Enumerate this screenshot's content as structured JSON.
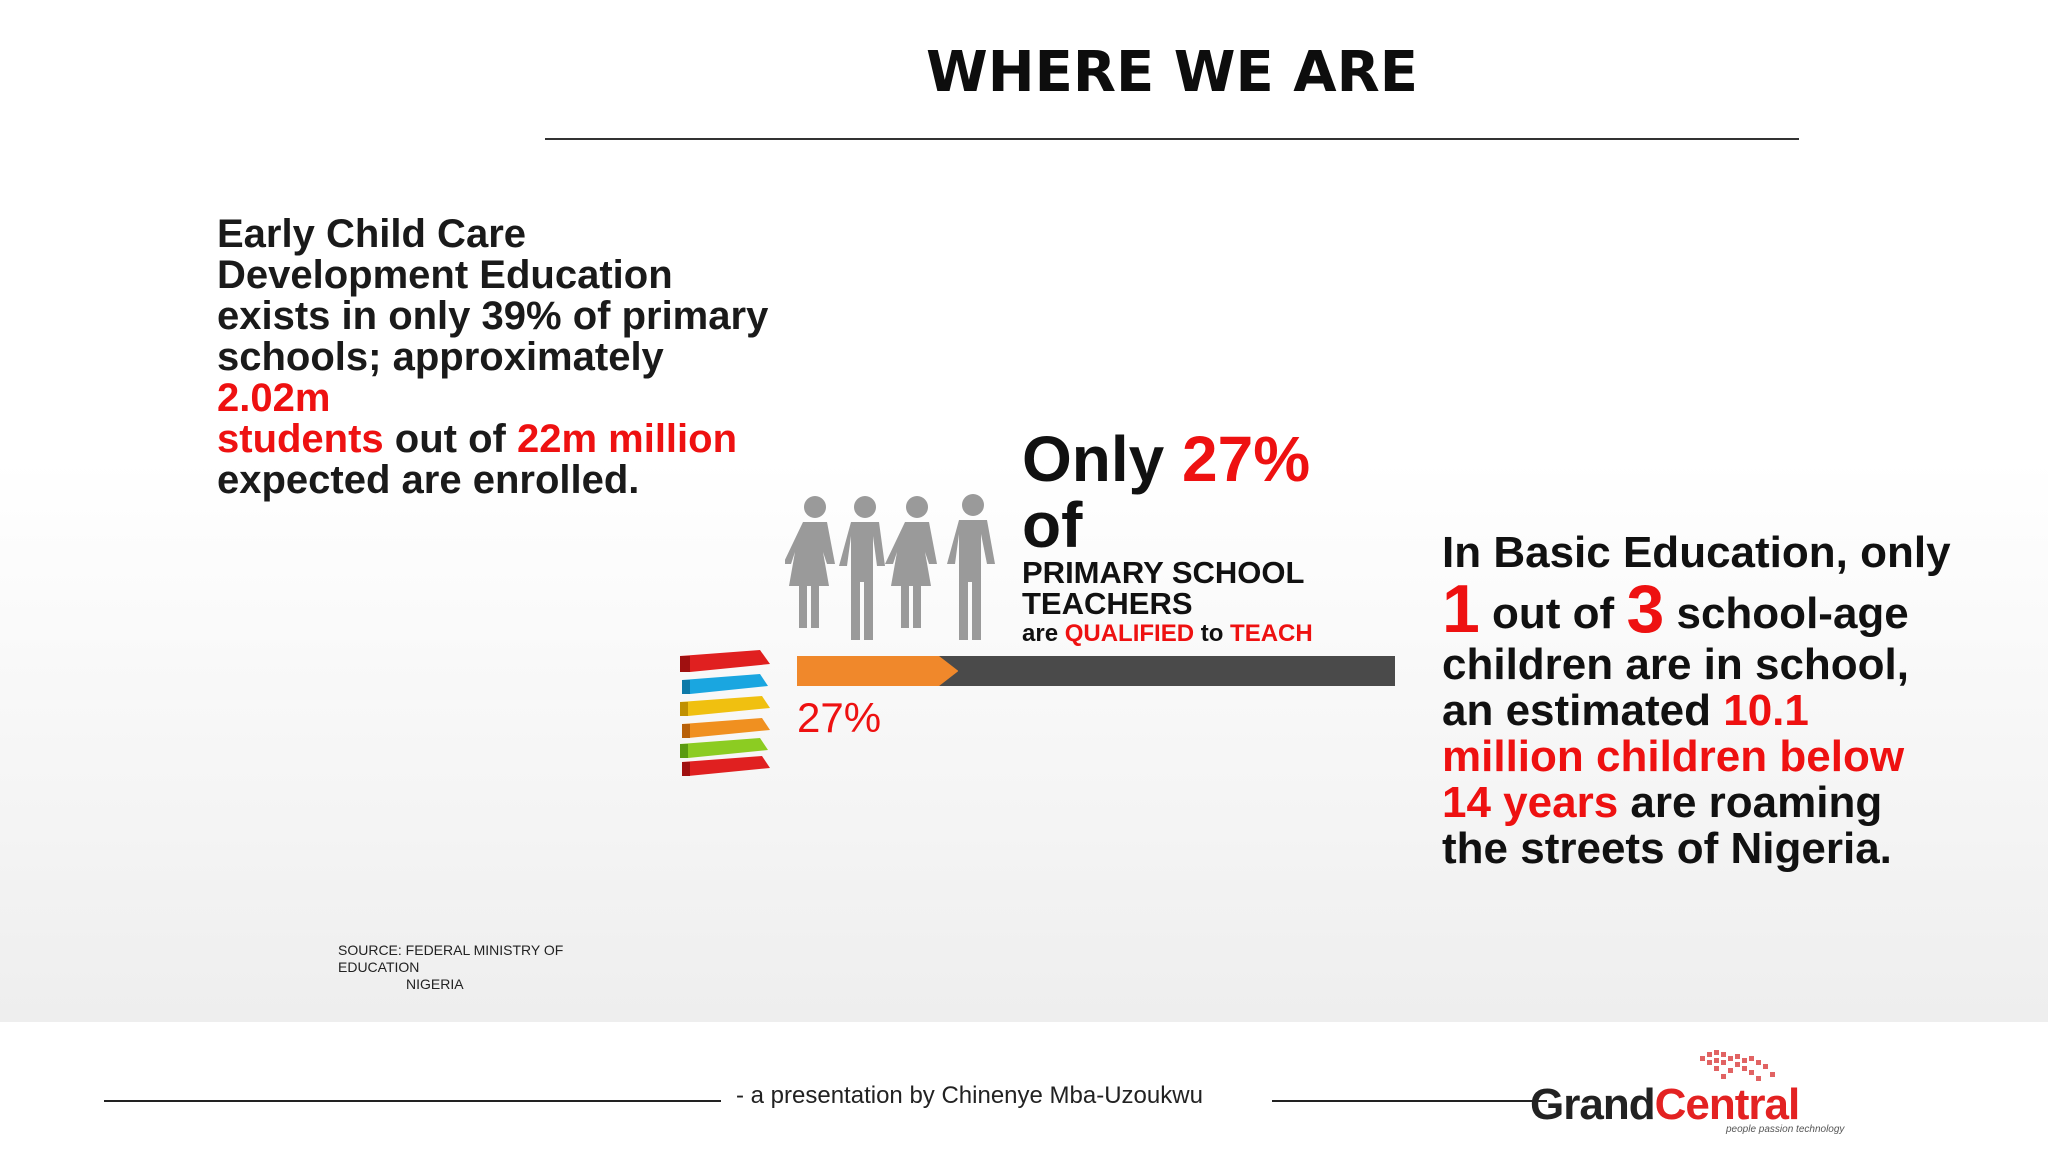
{
  "title": "WHERE WE ARE",
  "left_text": {
    "line1": "Early Child Care",
    "line2": "Development Education",
    "line3": "exists in only 39% of primary",
    "line4": "schools; approximately",
    "red1": "2.02m",
    "red2": "students",
    "mid": " out of ",
    "red3": "22m million",
    "line_end": "expected are enrolled."
  },
  "center": {
    "only": "Only ",
    "pct": "27%",
    "of": "of",
    "primary": "PRIMARY SCHOOL",
    "teachers": "TEACHERS",
    "are": "are ",
    "qualified": "QUALIFIED",
    "to": " to ",
    "teach": "TEACH",
    "bar_label": "27%",
    "bar_value": 0.27
  },
  "right_text": {
    "line1": "In Basic Education, only",
    "num1": "1",
    "out_of": " out of ",
    "num2": "3",
    "school_age": " school-age",
    "line3": "children are in school,",
    "est": "an estimated ",
    "red1": "10.1",
    "red2": "million children below",
    "red3": "14 years",
    "roaming": " are roaming",
    "line_end": "the streets of Nigeria."
  },
  "source": {
    "line1": "SOURCE: FEDERAL MINISTRY OF",
    "line2": "EDUCATION",
    "line3": "NIGERIA"
  },
  "footer": {
    "byline": "- a presentation by Chinenye Mba-Uzoukwu",
    "logo_grand": "Grand",
    "logo_central": "Central",
    "logo_tag": "people passion technology"
  },
  "colors": {
    "accent": "#ee1111",
    "bar_fill": "#f0882b",
    "bar_track": "#4a4a4a"
  }
}
